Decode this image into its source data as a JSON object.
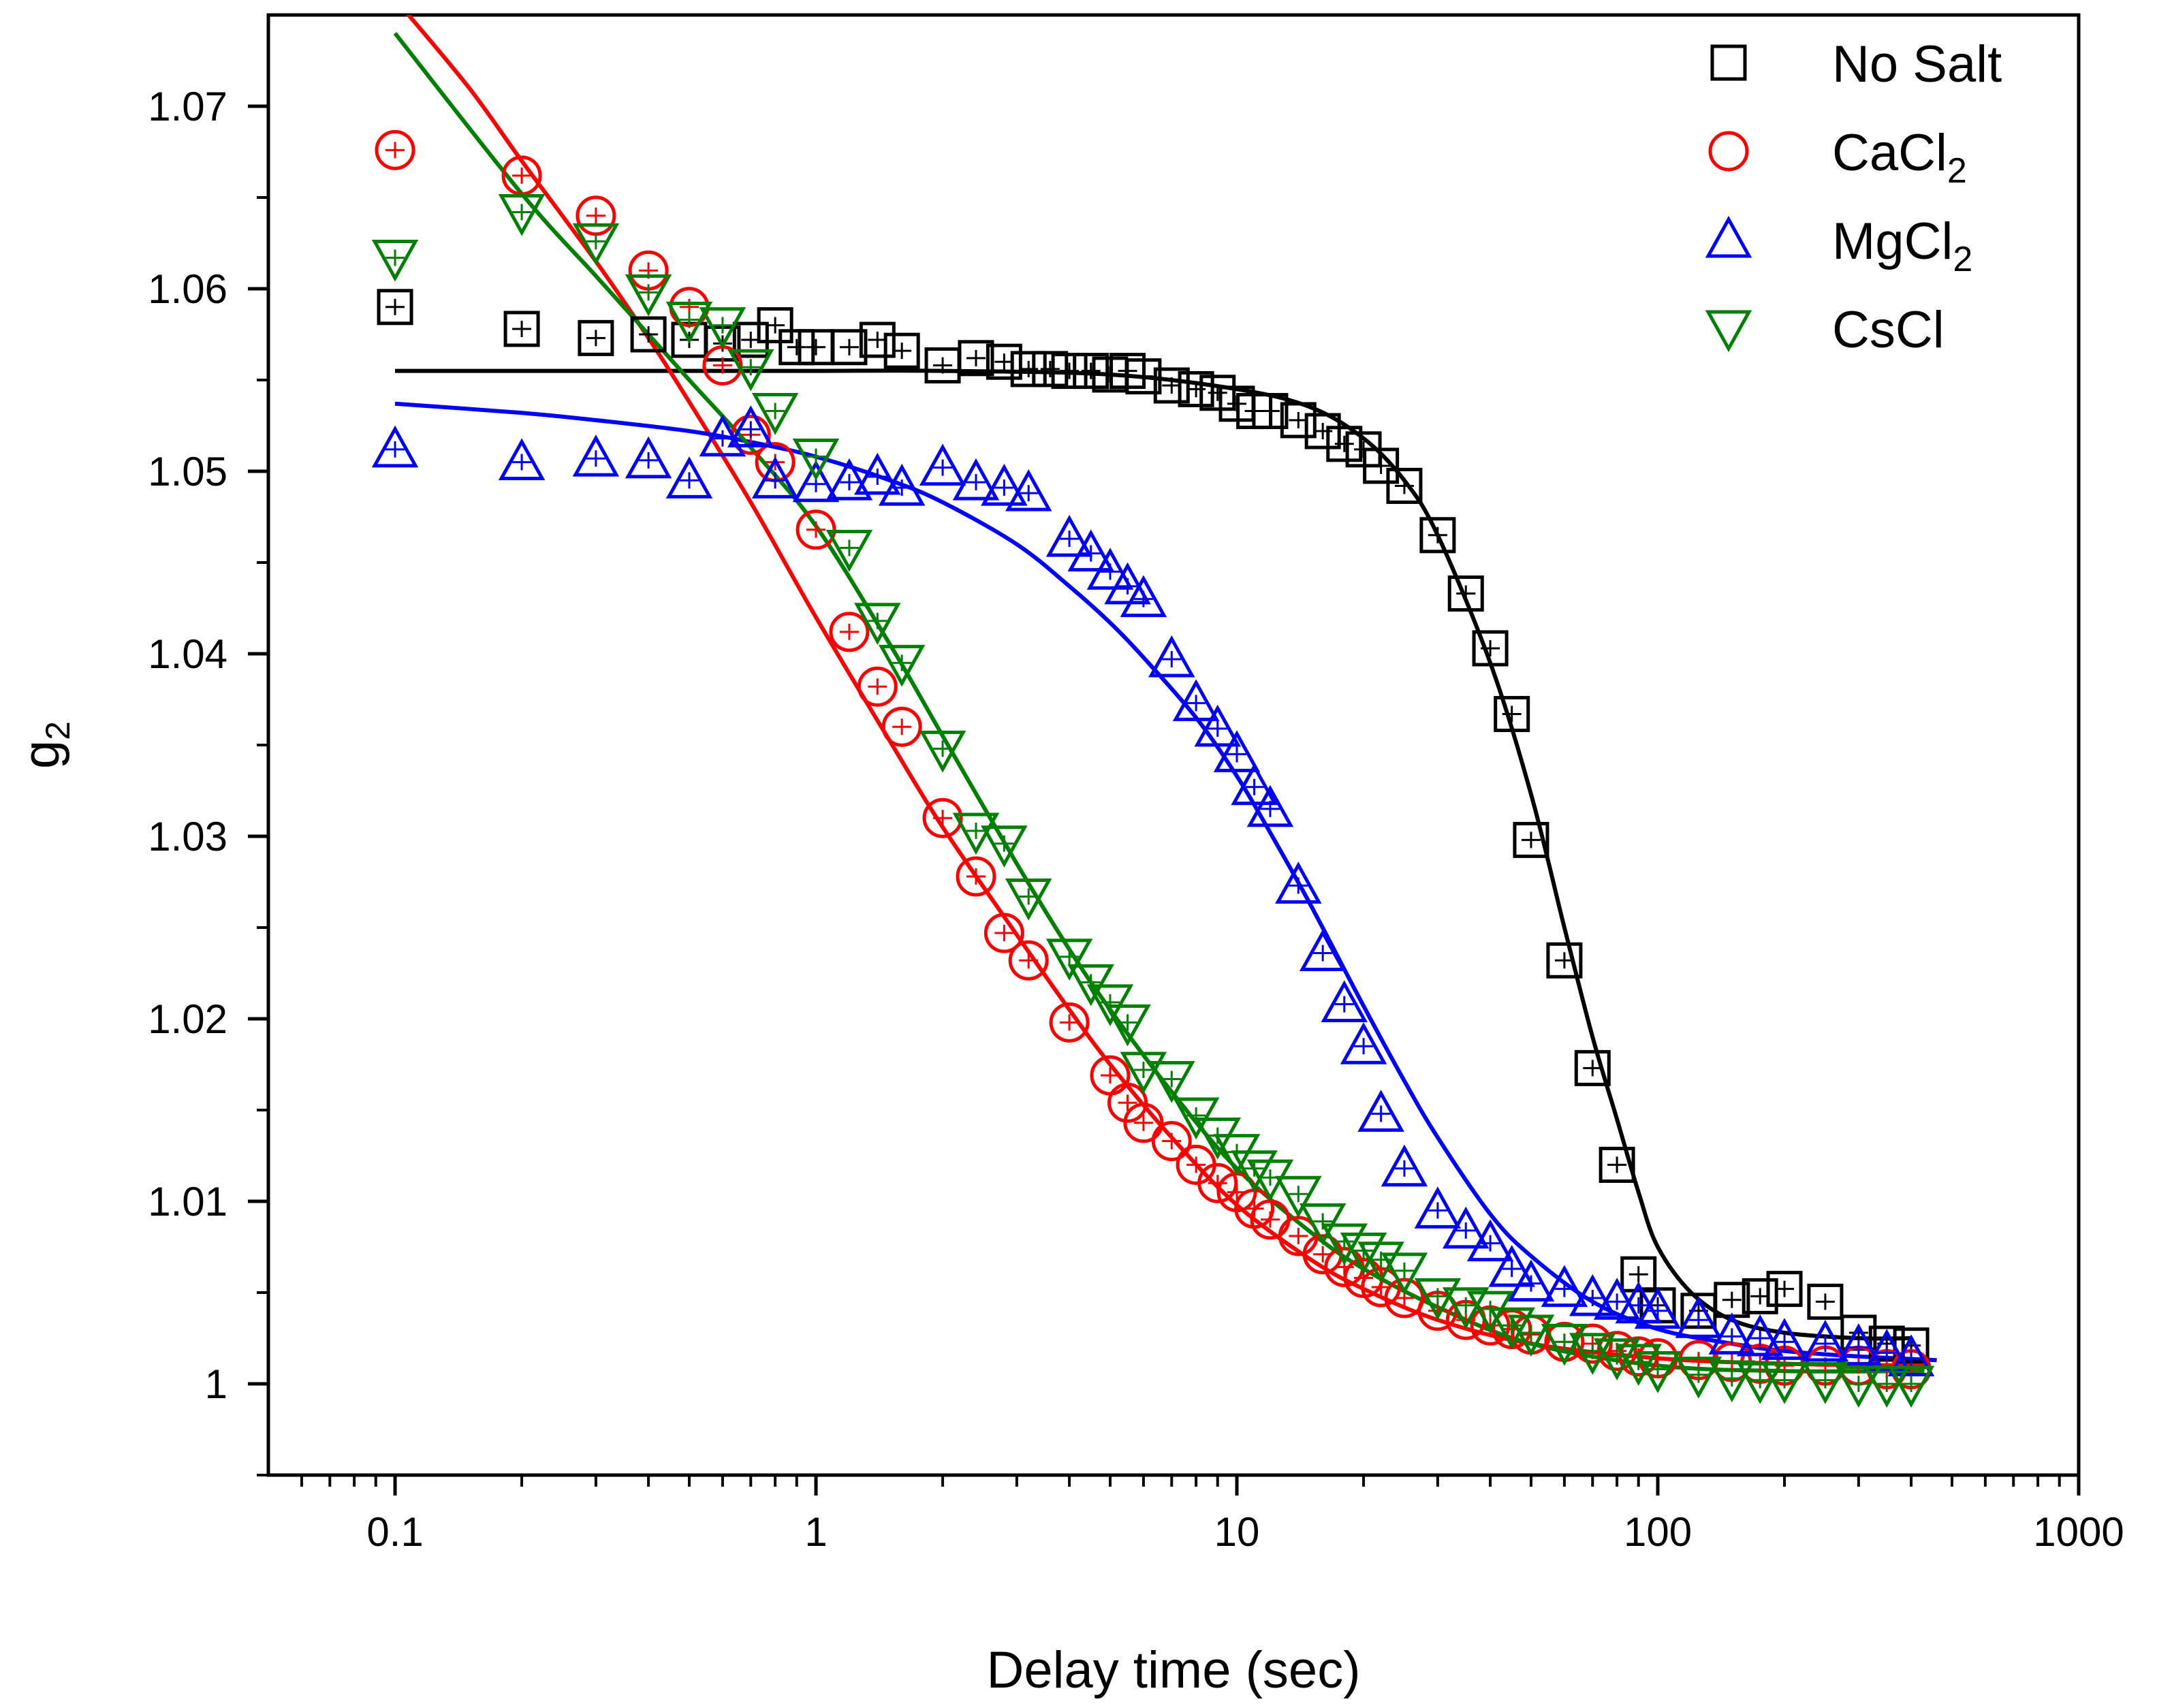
{
  "chart_data": {
    "type": "scatter",
    "title": "",
    "xlabel": "Delay time (sec)",
    "ylabel": "g2",
    "xscale": "log",
    "xlim": [
      0.05,
      1000
    ],
    "ylim": [
      0.995,
      1.075
    ],
    "x_ticks": [
      0.1,
      1,
      10,
      100,
      1000
    ],
    "x_tick_labels": [
      "0.1",
      "1",
      "10",
      "100",
      "1000"
    ],
    "y_ticks": [
      1.0,
      1.01,
      1.02,
      1.03,
      1.04,
      1.05,
      1.06,
      1.07
    ],
    "y_tick_labels": [
      "1",
      "1.01",
      "1.02",
      "1.03",
      "1.04",
      "1.05",
      "1.06",
      "1.07"
    ],
    "legend_position": "top-right",
    "series": [
      {
        "name": "No Salt",
        "label_main": "No Salt",
        "label_sub": "",
        "color": "#000000",
        "marker": "square",
        "x": [
          0.1,
          0.2,
          0.3,
          0.4,
          0.5,
          0.6,
          0.7,
          0.8,
          0.9,
          1,
          1.2,
          1.4,
          1.6,
          2,
          2.4,
          2.8,
          3.2,
          3.6,
          4,
          4.5,
          5,
          5.5,
          6,
          7,
          8,
          9,
          10,
          11,
          12,
          14,
          16,
          18,
          20,
          22,
          25,
          30,
          35,
          40,
          45,
          50,
          60,
          70,
          80,
          90,
          100,
          125,
          150,
          175,
          200,
          250,
          300,
          350,
          400
        ],
        "y": [
          1.059,
          1.0578,
          1.0573,
          1.0575,
          1.0572,
          1.057,
          1.0572,
          1.058,
          1.0568,
          1.0568,
          1.0568,
          1.0572,
          1.0566,
          1.0558,
          1.0562,
          1.056,
          1.0556,
          1.0556,
          1.0555,
          1.0555,
          1.0553,
          1.0555,
          1.0552,
          1.0547,
          1.0545,
          1.0543,
          1.0537,
          1.0533,
          1.0533,
          1.0528,
          1.0522,
          1.0515,
          1.0512,
          1.0503,
          1.0492,
          1.0465,
          1.0433,
          1.0403,
          1.0367,
          1.0298,
          1.0232,
          1.0173,
          1.012,
          1.006,
          1.0043,
          1.004,
          1.0046,
          1.0048,
          1.0052,
          1.0045,
          1.0028,
          1.0022,
          1.0021
        ],
        "fit_x": [
          0.1,
          0.2,
          0.5,
          1,
          2,
          5,
          10,
          15,
          20,
          25,
          30,
          40,
          50,
          60,
          70,
          80,
          90,
          100,
          120,
          150,
          200,
          300,
          400
        ],
        "fit_y": [
          1.0555,
          1.0555,
          1.0555,
          1.0555,
          1.0555,
          1.0553,
          1.0545,
          1.0535,
          1.0518,
          1.0495,
          1.0465,
          1.0395,
          1.0323,
          1.025,
          1.019,
          1.0145,
          1.0105,
          1.0075,
          1.005,
          1.0035,
          1.0028,
          1.0025,
          1.0025
        ]
      },
      {
        "name": "CaCl2",
        "label_main": "CaCl",
        "label_sub": "2",
        "color": "#ff0000",
        "marker": "circle",
        "x": [
          0.1,
          0.2,
          0.3,
          0.4,
          0.5,
          0.6,
          0.7,
          0.8,
          1,
          1.2,
          1.4,
          1.6,
          2,
          2.4,
          2.8,
          3.2,
          4,
          5,
          5.5,
          6,
          7,
          8,
          9,
          10,
          11,
          12,
          14,
          16,
          18,
          20,
          22,
          25,
          30,
          35,
          40,
          45,
          50,
          60,
          70,
          80,
          90,
          100,
          125,
          150,
          175,
          200,
          250,
          300,
          350,
          400
        ],
        "y": [
          1.0676,
          1.0662,
          1.064,
          1.061,
          1.059,
          1.0558,
          1.052,
          1.0505,
          1.0468,
          1.0412,
          1.0382,
          1.036,
          1.031,
          1.0278,
          1.0247,
          1.0232,
          1.0198,
          1.0169,
          1.0154,
          1.0143,
          1.0133,
          1.012,
          1.011,
          1.0105,
          1.0096,
          1.009,
          1.0081,
          1.0071,
          1.0064,
          1.0058,
          1.0053,
          1.0047,
          1.004,
          1.0035,
          1.0032,
          1.003,
          1.0027,
          1.0023,
          1.0022,
          1.0018,
          1.0015,
          1.0014,
          1.0013,
          1.0012,
          1.0011,
          1.001,
          1.001,
          1.001,
          1.0008,
          1.0008
        ],
        "fit_x": [
          0.105,
          0.15,
          0.2,
          0.3,
          0.4,
          0.5,
          0.7,
          1,
          1.5,
          2,
          3,
          4,
          5,
          7,
          10,
          15,
          20,
          30,
          50,
          100,
          200,
          430
        ],
        "fit_y": [
          1.0753,
          1.071,
          1.067,
          1.0615,
          1.0573,
          1.0538,
          1.0483,
          1.042,
          1.0352,
          1.0305,
          1.0246,
          1.0205,
          1.0175,
          1.0135,
          1.0098,
          1.0068,
          1.0052,
          1.0035,
          1.0022,
          1.0014,
          1.0011,
          1.001
        ]
      },
      {
        "name": "MgCl2",
        "label_main": "MgCl",
        "label_sub": "2",
        "color": "#0000ff",
        "marker": "triangle-up",
        "x": [
          0.1,
          0.2,
          0.3,
          0.4,
          0.5,
          0.6,
          0.7,
          0.8,
          1,
          1.2,
          1.4,
          1.6,
          2,
          2.4,
          2.8,
          3.2,
          4,
          4.5,
          5,
          5.5,
          6,
          7,
          8,
          9,
          10,
          11,
          12,
          14,
          16,
          18,
          20,
          22,
          25,
          30,
          35,
          40,
          45,
          50,
          60,
          70,
          80,
          90,
          100,
          125,
          150,
          175,
          200,
          250,
          300,
          350,
          400
        ],
        "y": [
          1.0512,
          1.0505,
          1.0507,
          1.0506,
          1.0495,
          1.0518,
          1.0523,
          1.0495,
          1.0493,
          1.0494,
          1.0497,
          1.0491,
          1.0502,
          1.0494,
          1.0491,
          1.0488,
          1.0463,
          1.0455,
          1.0445,
          1.0437,
          1.043,
          1.0397,
          1.0373,
          1.0359,
          1.0345,
          1.0327,
          1.0315,
          1.0273,
          1.0236,
          1.0208,
          1.0185,
          1.0148,
          1.0118,
          1.0095,
          1.0084,
          1.0077,
          1.0063,
          1.0055,
          1.0052,
          1.0047,
          1.0045,
          1.0043,
          1.004,
          1.0035,
          1.0026,
          1.0025,
          1.0023,
          1.0022,
          1.002,
          1.0017,
          1.0014
        ],
        "fit_x": [
          0.1,
          0.2,
          0.3,
          0.5,
          0.7,
          1,
          1.5,
          2,
          3,
          4,
          5,
          6,
          8,
          10,
          12,
          15,
          20,
          25,
          30,
          40,
          50,
          70,
          100,
          150,
          200,
          300,
          460
        ],
        "fit_y": [
          1.0537,
          1.0532,
          1.0528,
          1.0522,
          1.0516,
          1.0508,
          1.0495,
          1.0483,
          1.046,
          1.0437,
          1.0417,
          1.0398,
          1.0365,
          1.0333,
          1.0302,
          1.0262,
          1.0207,
          1.0166,
          1.0135,
          1.0093,
          1.007,
          1.0045,
          1.003,
          1.0022,
          1.0018,
          1.0015,
          1.0013
        ]
      },
      {
        "name": "CsCl",
        "label_main": "CsCl",
        "label_sub": "",
        "color": "#008000",
        "marker": "triangle-down",
        "x": [
          0.1,
          0.2,
          0.3,
          0.4,
          0.5,
          0.6,
          0.7,
          0.8,
          1,
          1.2,
          1.4,
          1.6,
          2,
          2.4,
          2.8,
          3.2,
          4,
          4.5,
          5,
          5.5,
          6,
          7,
          8,
          9,
          10,
          11,
          12,
          14,
          16,
          18,
          20,
          22,
          25,
          30,
          35,
          40,
          45,
          50,
          60,
          70,
          80,
          90,
          100,
          125,
          150,
          175,
          200,
          250,
          300,
          350,
          400
        ],
        "y": [
          1.0617,
          1.0642,
          1.0626,
          1.0598,
          1.0583,
          1.058,
          1.0557,
          1.0533,
          1.0508,
          1.0458,
          1.0418,
          1.0395,
          1.0348,
          1.0303,
          1.0296,
          1.0267,
          1.0234,
          1.022,
          1.0209,
          1.0198,
          1.0172,
          1.0167,
          1.0147,
          1.0136,
          1.0127,
          1.0118,
          1.0113,
          1.0104,
          1.0089,
          1.0078,
          1.0073,
          1.0068,
          1.0062,
          1.0048,
          1.0043,
          1.0041,
          1.0032,
          1.0028,
          1.0023,
          1.0018,
          1.0015,
          1.0012,
          1.0008,
          1.0005,
          1.0003,
          1.0002,
          1.0002,
          1.0002,
          1.0,
          1.0,
          1.0
        ],
        "fit_x": [
          0.1,
          0.2,
          0.3,
          0.4,
          0.5,
          0.7,
          1,
          1.5,
          2,
          3,
          4,
          5,
          7,
          10,
          15,
          20,
          30,
          50,
          100,
          200,
          430
        ],
        "fit_y": [
          1.074,
          1.0652,
          1.0607,
          1.0575,
          1.055,
          1.0513,
          1.047,
          1.0405,
          1.0355,
          1.0285,
          1.0238,
          1.0205,
          1.016,
          1.0118,
          1.0083,
          1.0063,
          1.0042,
          1.0022,
          1.001,
          1.0007,
          1.0007
        ]
      }
    ]
  }
}
